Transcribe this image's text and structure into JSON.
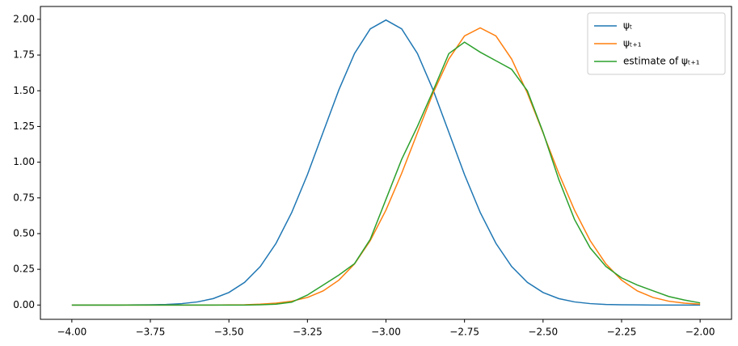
{
  "chart_data": {
    "type": "line",
    "x": [
      -4,
      -3.95,
      -3.9,
      -3.85,
      -3.8,
      -3.75,
      -3.7,
      -3.65,
      -3.6,
      -3.55,
      -3.5,
      -3.45,
      -3.4,
      -3.35,
      -3.3,
      -3.25,
      -3.2,
      -3.15,
      -3.1,
      -3.05,
      -3,
      -2.95,
      -2.9,
      -2.85,
      -2.8,
      -2.75,
      -2.7,
      -2.65,
      -2.6,
      -2.55,
      -2.5,
      -2.45,
      -2.4,
      -2.35,
      -2.3,
      -2.25,
      -2.2,
      -2.15,
      -2.1,
      -2.05,
      -2
    ],
    "series": [
      {
        "name": "ψₜ",
        "color": "#1f77b4",
        "values": [
          0,
          0,
          0,
          0,
          0.001,
          0.002,
          0.004,
          0.01,
          0.022,
          0.045,
          0.088,
          0.159,
          0.27,
          0.432,
          0.648,
          0.913,
          1.21,
          1.506,
          1.761,
          1.933,
          1.995,
          1.933,
          1.761,
          1.506,
          1.21,
          0.913,
          0.648,
          0.432,
          0.27,
          0.159,
          0.088,
          0.045,
          0.022,
          0.01,
          0.004,
          0.002,
          0.001,
          0,
          0,
          0,
          0
        ]
      },
      {
        "name": "ψₜ₊₁",
        "color": "#ff7f0e",
        "values": [
          0,
          0,
          0,
          0,
          0,
          0,
          0,
          0,
          0,
          0,
          0.001,
          0.002,
          0.006,
          0.013,
          0.027,
          0.053,
          0.099,
          0.174,
          0.288,
          0.451,
          0.665,
          0.922,
          1.205,
          1.484,
          1.722,
          1.884,
          1.94,
          1.884,
          1.722,
          1.484,
          1.205,
          0.922,
          0.665,
          0.451,
          0.288,
          0.174,
          0.099,
          0.053,
          0.027,
          0.013,
          0.006
        ]
      },
      {
        "name": "estimate of ψₜ₊₁",
        "color": "#2ca02c",
        "values": [
          0,
          0,
          0,
          0,
          0,
          0,
          0,
          0,
          0,
          0,
          0,
          0,
          0.002,
          0.006,
          0.02,
          0.07,
          0.14,
          0.21,
          0.29,
          0.46,
          0.74,
          1.02,
          1.25,
          1.5,
          1.76,
          1.84,
          1.77,
          1.71,
          1.65,
          1.5,
          1.21,
          0.88,
          0.6,
          0.4,
          0.27,
          0.19,
          0.14,
          0.1,
          0.06,
          0.035,
          0.015
        ]
      }
    ],
    "xlim": [
      -4.1,
      -1.9
    ],
    "ylim": [
      -0.1,
      2.09
    ],
    "xticks": [
      {
        "value": -4,
        "label": "−4.00"
      },
      {
        "value": -3.75,
        "label": "−3.75"
      },
      {
        "value": -3.5,
        "label": "−3.50"
      },
      {
        "value": -3.25,
        "label": "−3.25"
      },
      {
        "value": -3,
        "label": "−3.00"
      },
      {
        "value": -2.75,
        "label": "−2.75"
      },
      {
        "value": -2.5,
        "label": "−2.50"
      },
      {
        "value": -2.25,
        "label": "−2.25"
      },
      {
        "value": -2,
        "label": "−2.00"
      }
    ],
    "yticks": [
      {
        "value": 0,
        "label": "0.00"
      },
      {
        "value": 0.25,
        "label": "0.25"
      },
      {
        "value": 0.5,
        "label": "0.50"
      },
      {
        "value": 0.75,
        "label": "0.75"
      },
      {
        "value": 1,
        "label": "1.00"
      },
      {
        "value": 1.25,
        "label": "1.25"
      },
      {
        "value": 1.5,
        "label": "1.50"
      },
      {
        "value": 1.75,
        "label": "1.75"
      },
      {
        "value": 2,
        "label": "2.00"
      }
    ],
    "legend": "upper right"
  }
}
